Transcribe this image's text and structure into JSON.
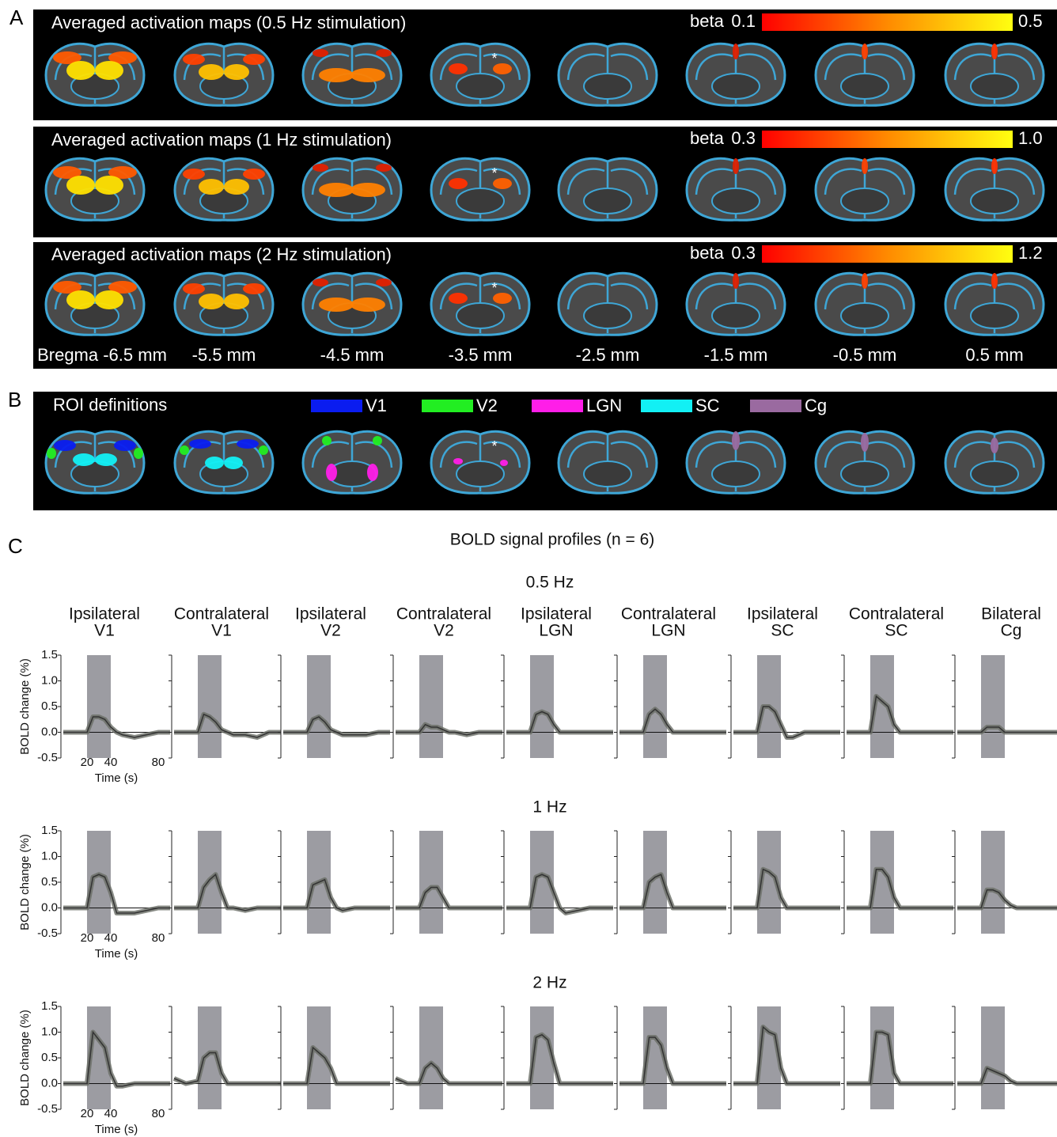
{
  "panel_a": {
    "label": "A",
    "asterisk": "*",
    "rows": [
      {
        "title": "Averaged activation maps (0.5 Hz stimulation)",
        "colorbar": {
          "label": "beta",
          "min": "0.1",
          "max": "0.5"
        }
      },
      {
        "title": "Averaged activation maps  (1 Hz stimulation)",
        "colorbar": {
          "label": "beta",
          "min": "0.3",
          "max": "1.0"
        }
      },
      {
        "title": "Averaged activation maps (2 Hz stimulation)",
        "colorbar": {
          "label": "beta",
          "min": "0.3",
          "max": "1.2"
        }
      }
    ],
    "bregma": [
      "Bregma -6.5 mm",
      "-5.5 mm",
      "-4.5 mm",
      "-3.5 mm",
      "-2.5 mm",
      "-1.5 mm",
      "-0.5 mm",
      "0.5 mm"
    ]
  },
  "panel_b": {
    "label": "B",
    "title": "ROI definitions",
    "legend": [
      {
        "name": "V1",
        "color": "#0a1cf0"
      },
      {
        "name": "V2",
        "color": "#22ee22"
      },
      {
        "name": "LGN",
        "color": "#ff1ee8"
      },
      {
        "name": "SC",
        "color": "#12f0f4"
      },
      {
        "name": "Cg",
        "color": "#9a6aa0"
      }
    ]
  },
  "panel_c": {
    "label": "C",
    "title": "BOLD signal profiles (n = 6)",
    "columns": [
      [
        "Ipsilateral",
        "V1"
      ],
      [
        "Contralateral",
        "V1"
      ],
      [
        "Ipsilateral",
        "V2"
      ],
      [
        "Contralateral",
        "V2"
      ],
      [
        "Ipsilateral",
        "LGN"
      ],
      [
        "Contralateral",
        "LGN"
      ],
      [
        "Ipsilateral",
        "SC"
      ],
      [
        "Contralateral",
        "SC"
      ],
      [
        "Bilateral",
        "Cg"
      ]
    ]
  },
  "chart_data": [
    {
      "type": "line",
      "title": "0.5 Hz",
      "xlabel": "Time (s)",
      "ylabel": "BOLD change (%)",
      "x": [
        0,
        10,
        20,
        25,
        30,
        35,
        40,
        45,
        50,
        60,
        70,
        80,
        90
      ],
      "xlim": [
        0,
        90
      ],
      "xticks": [
        20,
        40,
        80
      ],
      "ylim": [
        -0.5,
        1.5
      ],
      "yticks": [
        -0.5,
        {
          "value": 0,
          "label": "0.0"
        },
        0.5,
        {
          "value": 1,
          "label": "1.0"
        },
        1.5
      ],
      "stimulus": [
        20,
        40
      ],
      "series": [
        {
          "color": "#333333",
          "values": [
            0,
            0,
            0,
            0.3,
            0.3,
            0.25,
            0.1,
            0,
            -0.05,
            -0.1,
            -0.05,
            0,
            0
          ]
        },
        {
          "color": "#333333",
          "values": [
            0,
            0,
            0,
            0.35,
            0.3,
            0.2,
            0.05,
            0,
            -0.05,
            -0.05,
            -0.1,
            0,
            0
          ]
        },
        {
          "color": "#333333",
          "values": [
            0,
            0,
            0,
            0.25,
            0.3,
            0.2,
            0.05,
            0,
            -0.05,
            -0.05,
            -0.05,
            0,
            0
          ]
        },
        {
          "color": "#333333",
          "values": [
            0,
            0,
            0,
            0.15,
            0.1,
            0.1,
            0.05,
            0,
            0,
            -0.05,
            0,
            0,
            0
          ]
        },
        {
          "color": "#333333",
          "values": [
            0,
            0,
            0,
            0.35,
            0.4,
            0.35,
            0.15,
            0,
            0,
            0,
            0,
            0,
            0
          ]
        },
        {
          "color": "#333333",
          "values": [
            0,
            0,
            0,
            0.35,
            0.45,
            0.35,
            0.15,
            0,
            0,
            0,
            0,
            0,
            0
          ]
        },
        {
          "color": "#333333",
          "values": [
            0,
            0,
            0,
            0.5,
            0.5,
            0.4,
            0.15,
            -0.1,
            -0.1,
            0,
            0,
            0,
            0
          ]
        },
        {
          "color": "#333333",
          "values": [
            0,
            0,
            0,
            0.7,
            0.6,
            0.5,
            0.15,
            0,
            0,
            0,
            0,
            0,
            0
          ]
        },
        {
          "color": "#333333",
          "values": [
            0,
            0,
            0,
            0.1,
            0.1,
            0.1,
            0,
            0,
            0,
            0,
            0,
            0,
            0
          ]
        }
      ]
    },
    {
      "type": "line",
      "title": "1 Hz",
      "xlabel": "Time (s)",
      "ylabel": "BOLD change (%)",
      "x": [
        0,
        10,
        20,
        25,
        30,
        35,
        40,
        45,
        50,
        60,
        70,
        80,
        90
      ],
      "xlim": [
        0,
        90
      ],
      "xticks": [
        20,
        40,
        80
      ],
      "ylim": [
        -0.5,
        1.5
      ],
      "yticks": [
        -0.5,
        {
          "value": 0,
          "label": "0.0"
        },
        0.5,
        {
          "value": 1,
          "label": "1.0"
        },
        1.5
      ],
      "stimulus": [
        20,
        40
      ],
      "series": [
        {
          "color": "#333333",
          "values": [
            0,
            0,
            0,
            0.6,
            0.65,
            0.6,
            0.3,
            -0.1,
            -0.1,
            -0.1,
            -0.05,
            0,
            0
          ]
        },
        {
          "color": "#333333",
          "values": [
            0,
            0,
            0,
            0.4,
            0.55,
            0.65,
            0.3,
            0,
            0,
            -0.05,
            0,
            0,
            0
          ]
        },
        {
          "color": "#333333",
          "values": [
            0,
            0,
            0,
            0.45,
            0.5,
            0.55,
            0.2,
            0,
            -0.05,
            0,
            0,
            0,
            0
          ]
        },
        {
          "color": "#333333",
          "values": [
            0,
            0,
            0,
            0.3,
            0.4,
            0.4,
            0.2,
            0,
            0,
            0,
            0,
            0,
            0
          ]
        },
        {
          "color": "#333333",
          "values": [
            0,
            0,
            0,
            0.6,
            0.65,
            0.6,
            0.3,
            0,
            -0.1,
            -0.05,
            0,
            0,
            0
          ]
        },
        {
          "color": "#333333",
          "values": [
            0,
            0,
            0,
            0.5,
            0.6,
            0.65,
            0.3,
            0,
            0,
            0,
            0,
            0,
            0
          ]
        },
        {
          "color": "#333333",
          "values": [
            0,
            0,
            0,
            0.75,
            0.7,
            0.6,
            0.2,
            0,
            0,
            0,
            0,
            0,
            0
          ]
        },
        {
          "color": "#333333",
          "values": [
            0,
            0,
            0,
            0.75,
            0.75,
            0.6,
            0.2,
            0,
            0,
            0,
            0,
            0,
            0
          ]
        },
        {
          "color": "#333333",
          "values": [
            0,
            0,
            0,
            0.35,
            0.35,
            0.3,
            0.15,
            0.05,
            0,
            0,
            0,
            0,
            0
          ]
        }
      ]
    },
    {
      "type": "line",
      "title": "2 Hz",
      "xlabel": "Time (s)",
      "ylabel": "BOLD change (%)",
      "x": [
        0,
        10,
        20,
        25,
        30,
        35,
        40,
        45,
        50,
        60,
        70,
        80,
        90
      ],
      "xlim": [
        0,
        90
      ],
      "xticks": [
        20,
        40,
        80
      ],
      "ylim": [
        -0.5,
        1.5
      ],
      "yticks": [
        -0.5,
        {
          "value": 0,
          "label": "0.0"
        },
        0.5,
        {
          "value": 1,
          "label": "1.0"
        },
        1.5
      ],
      "stimulus": [
        20,
        40
      ],
      "series": [
        {
          "color": "#333333",
          "values": [
            0,
            0,
            0,
            1.0,
            0.85,
            0.7,
            0.2,
            -0.05,
            -0.05,
            0,
            0,
            0,
            0
          ]
        },
        {
          "color": "#333333",
          "values": [
            0.1,
            0,
            0.05,
            0.5,
            0.6,
            0.6,
            0.2,
            0,
            0,
            0,
            0,
            0,
            0
          ]
        },
        {
          "color": "#333333",
          "values": [
            0,
            0,
            0,
            0.7,
            0.6,
            0.5,
            0.3,
            0,
            0,
            0,
            0,
            0,
            0
          ]
        },
        {
          "color": "#333333",
          "values": [
            0.1,
            0,
            0,
            0.3,
            0.4,
            0.3,
            0.1,
            0,
            0,
            0,
            0,
            0,
            0
          ]
        },
        {
          "color": "#333333",
          "values": [
            0,
            0,
            0,
            0.9,
            0.95,
            0.85,
            0.4,
            0,
            0,
            0,
            0,
            0,
            0
          ]
        },
        {
          "color": "#333333",
          "values": [
            0,
            0,
            0,
            0.9,
            0.9,
            0.75,
            0.3,
            0,
            0,
            0,
            0,
            0,
            0
          ]
        },
        {
          "color": "#333333",
          "values": [
            0,
            0,
            0,
            1.1,
            1.0,
            0.95,
            0.3,
            0,
            0,
            0,
            0,
            0,
            0
          ]
        },
        {
          "color": "#333333",
          "values": [
            0,
            0,
            0,
            1.0,
            1.0,
            0.95,
            0.2,
            0,
            0,
            0,
            0,
            0,
            0
          ]
        },
        {
          "color": "#333333",
          "values": [
            0,
            0,
            0,
            0.3,
            0.25,
            0.2,
            0.15,
            0.05,
            0,
            0,
            0,
            0,
            0
          ]
        }
      ]
    }
  ]
}
